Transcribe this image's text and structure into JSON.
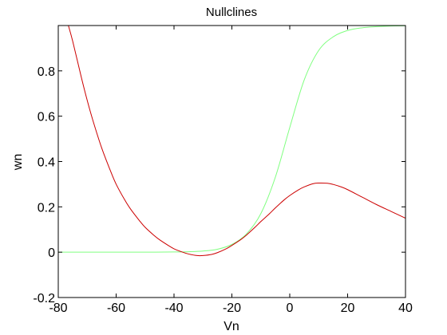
{
  "chart_data": {
    "type": "line",
    "title": "Nullclines",
    "xlabel": "Vn",
    "ylabel": "wn",
    "xlim": [
      -80,
      40
    ],
    "ylim": [
      -0.2,
      1.0
    ],
    "xticks": [
      -80,
      -60,
      -40,
      -20,
      0,
      20,
      40
    ],
    "xtick_labels": [
      "-80",
      "-60",
      "-40",
      "-20",
      "0",
      "20",
      "40"
    ],
    "yticks": [
      -0.2,
      0,
      0.2,
      0.4,
      0.6,
      0.8
    ],
    "ytick_labels": [
      "-0.2",
      "0",
      "0.2",
      "0.4",
      "0.6",
      "0.8"
    ],
    "grid": false,
    "legend": "none",
    "series": [
      {
        "color": "#80ff80",
        "x": [
          -80,
          -70,
          -60,
          -50,
          -40,
          -35,
          -30,
          -25,
          -20,
          -15,
          -10,
          -5,
          0,
          5,
          10,
          15,
          20,
          25,
          30,
          35,
          40
        ],
        "y": [
          0.0,
          0.0,
          0.0,
          0.0,
          0.001,
          0.002,
          0.005,
          0.013,
          0.034,
          0.08,
          0.17,
          0.33,
          0.55,
          0.76,
          0.89,
          0.95,
          0.978,
          0.99,
          0.995,
          0.998,
          0.999
        ]
      },
      {
        "color": "#cc0000",
        "x": [
          -76.5,
          -75,
          -72,
          -70,
          -68,
          -65,
          -62,
          -60,
          -57,
          -55,
          -52,
          -50,
          -47,
          -45,
          -42,
          -40,
          -37,
          -35,
          -32,
          -30,
          -27,
          -25,
          -22,
          -20,
          -17,
          -15,
          -12,
          -10,
          -7,
          -5,
          -2,
          0,
          3,
          5,
          8,
          10,
          13,
          15,
          18,
          20,
          25,
          30,
          35,
          40
        ],
        "y": [
          1.0,
          0.93,
          0.77,
          0.67,
          0.58,
          0.46,
          0.36,
          0.3,
          0.23,
          0.19,
          0.14,
          0.11,
          0.075,
          0.055,
          0.03,
          0.015,
          0.0,
          -0.008,
          -0.015,
          -0.015,
          -0.01,
          -0.002,
          0.015,
          0.03,
          0.055,
          0.075,
          0.11,
          0.135,
          0.17,
          0.195,
          0.23,
          0.25,
          0.275,
          0.288,
          0.302,
          0.305,
          0.304,
          0.299,
          0.287,
          0.276,
          0.243,
          0.21,
          0.18,
          0.15
        ]
      }
    ]
  }
}
